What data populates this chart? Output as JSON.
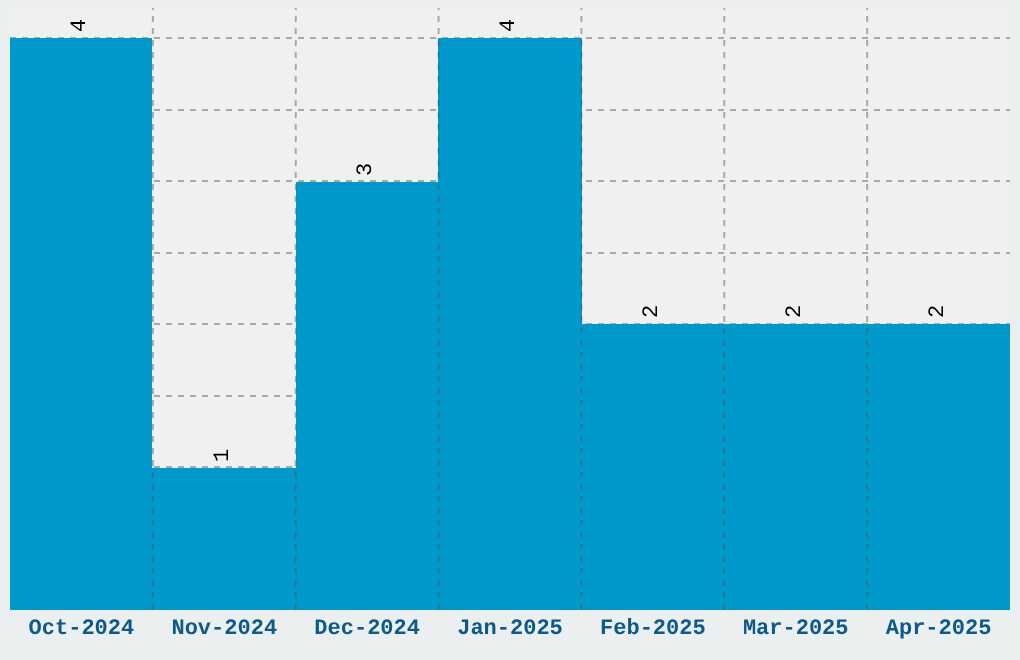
{
  "chart_data": {
    "type": "bar",
    "categories": [
      "Oct-2024",
      "Nov-2024",
      "Dec-2024",
      "Jan-2025",
      "Feb-2025",
      "Mar-2025",
      "Apr-2025"
    ],
    "values": [
      4,
      1,
      3,
      4,
      2,
      2,
      2
    ],
    "color": "#0099cc",
    "tick_labels": "x",
    "grid": true,
    "data_labels": true
  }
}
